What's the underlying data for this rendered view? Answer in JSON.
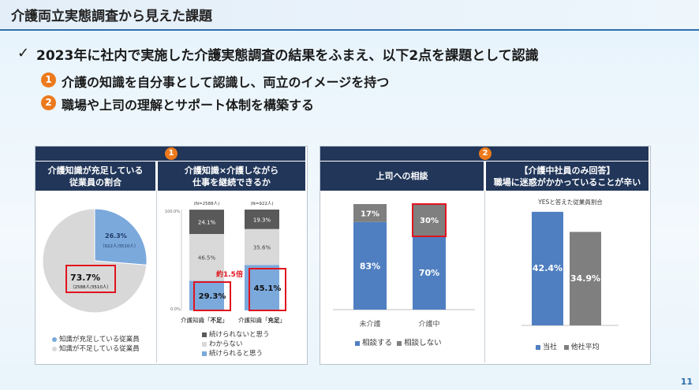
{
  "header": {
    "title": "介護両立実態調査から見えた課題"
  },
  "lead": {
    "check": "✓",
    "text": "2023年に社内で実施した介護実態調査の結果をふまえ、以下2点を課題として認識"
  },
  "points": [
    {
      "num": "1",
      "text": "介護の知識を自分事として認識し、両立のイメージを持つ"
    },
    {
      "num": "2",
      "text": "職場や上司の理解とサポート体制を構築する"
    }
  ],
  "panel1": {
    "badge": "1",
    "pie": {
      "header": "介護知識が充足している\n従業員の割合",
      "chart_data": {
        "type": "pie",
        "labels": [
          "知識が充足している従業員",
          "知識が不足している従業員"
        ],
        "values": [
          26.3,
          73.7
        ],
        "colors": [
          "#7ba9dc",
          "#d8d8d8"
        ]
      },
      "slice1_pct": "26.3%",
      "slice1_note": "（922人/3510人）",
      "slice2_pct": "73.7%",
      "slice2_note": "（2588人/3510人）",
      "legend": [
        "知識が充足している従業員",
        "知識が不足している従業員"
      ]
    },
    "bars": {
      "header": "介護知識×介護しながら\n仕事を継続できるか",
      "chart_data": {
        "type": "bar",
        "stacked": true,
        "categories": [
          "介護知識「不足」",
          "介護知識「充足」"
        ],
        "series": [
          {
            "name": "続けられると思う",
            "values": [
              29.3,
              45.1
            ],
            "color": "#7ba9dc"
          },
          {
            "name": "わからない",
            "values": [
              46.5,
              35.6
            ],
            "color": "#d9d9d9"
          },
          {
            "name": "続けられないと思う",
            "values": [
              24.1,
              19.3
            ],
            "color": "#595959"
          }
        ],
        "ylim": [
          0,
          100
        ]
      },
      "n_labels": [
        "(N=2588人)",
        "(N=922人)"
      ],
      "ytick_top": "100.0%",
      "ytick_bottom": "0.0%",
      "labels_top": [
        "24.1%",
        "19.3%"
      ],
      "labels_mid": [
        "46.5%",
        "35.6%"
      ],
      "labels_bottom": [
        "29.3%",
        "45.1%"
      ],
      "multiplier": "約1.5倍",
      "cat_a_prefix": "介護知識「",
      "cat_a_bold": "不足",
      "cat_suffix": "」",
      "cat_b_prefix": "介護知識「",
      "cat_b_bold": "充足",
      "legend": [
        "続けられないと思う",
        "わからない",
        "続けられると思う"
      ]
    }
  },
  "panel2": {
    "badge": "2",
    "consult": {
      "header": "上司への相談",
      "chart_data": {
        "type": "bar",
        "stacked": true,
        "categories": [
          "未介護",
          "介護中"
        ],
        "series": [
          {
            "name": "相談する",
            "values": [
              83,
              70
            ],
            "color": "#4f7fc1"
          },
          {
            "name": "相談しない",
            "values": [
              17,
              30
            ],
            "color": "#7f7f7f"
          }
        ],
        "ylim": [
          0,
          100
        ]
      },
      "labels_top": [
        "17%",
        "30%"
      ],
      "labels_bottom": [
        "83%",
        "70%"
      ],
      "legend": [
        "相談する",
        "相談しない"
      ]
    },
    "burden": {
      "header": "【介護中社員のみ回答】\n職場に迷惑がかかっていることが辛い",
      "subtitle": "YESと答えた従業員割合",
      "chart_data": {
        "type": "bar",
        "categories": [
          "当社",
          "他社平均"
        ],
        "values": [
          42.4,
          34.9
        ],
        "colors": [
          "#4f7fc1",
          "#7f7f7f"
        ]
      },
      "value_labels": [
        "42.4%",
        "34.9%"
      ],
      "legend": [
        "当社",
        "他社平均"
      ]
    }
  },
  "page_number": "11"
}
